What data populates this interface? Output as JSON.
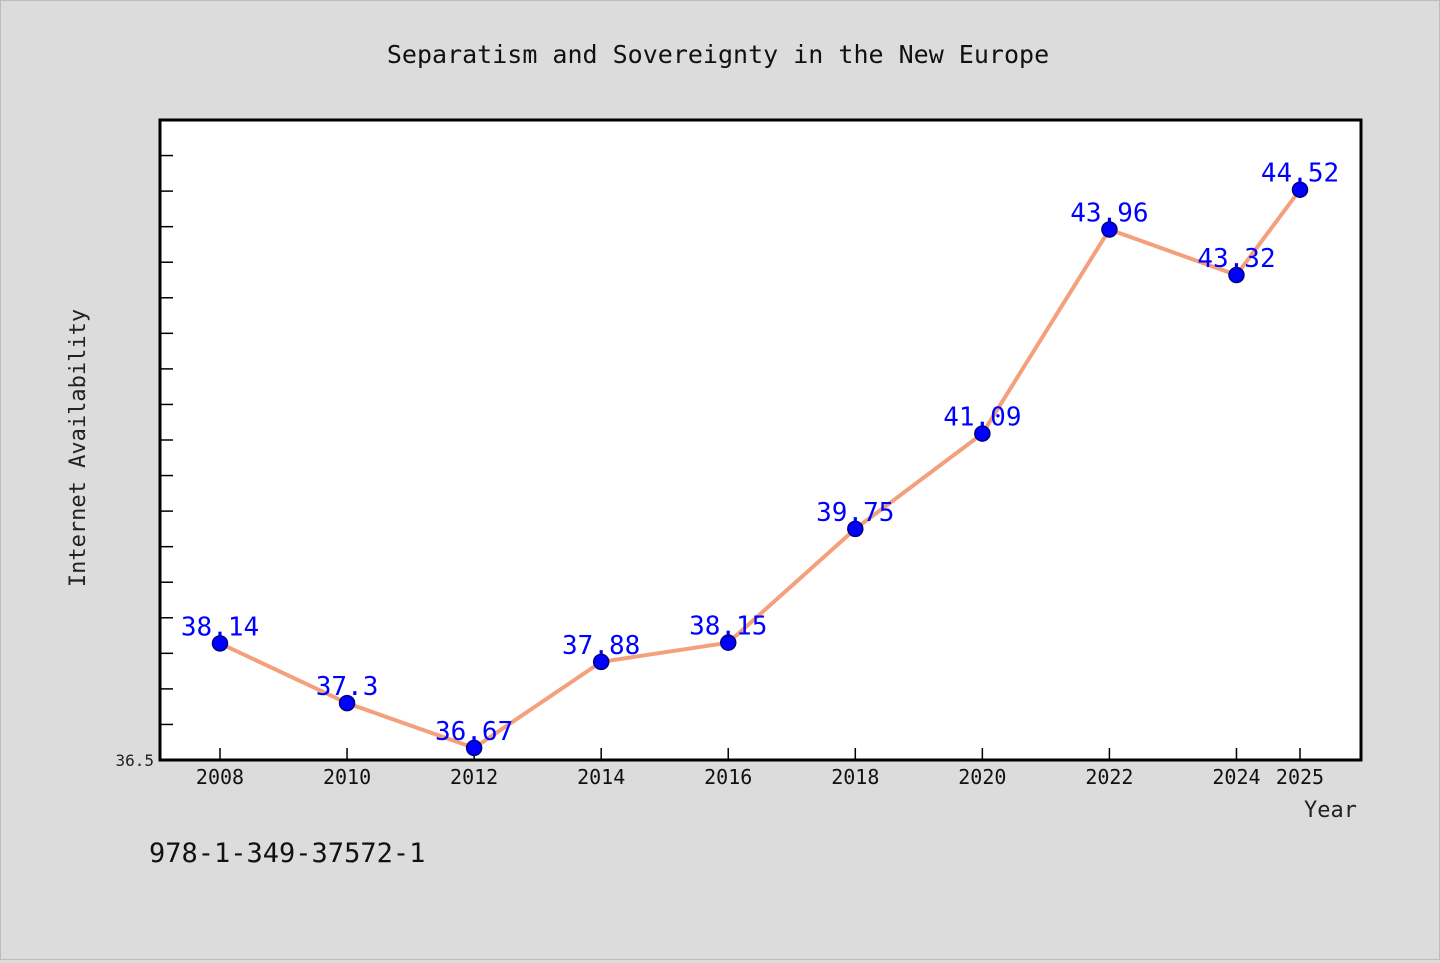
{
  "chart_data": {
    "type": "line",
    "title": "Separatism and Sovereignty in the New Europe",
    "xlabel": "Year",
    "ylabel": "Internet Availability",
    "x": [
      "2008",
      "2010",
      "2012",
      "2014",
      "2016",
      "2018",
      "2020",
      "2022",
      "2024",
      "2025"
    ],
    "series": [
      {
        "values": [
          38.14,
          37.3,
          36.67,
          37.88,
          38.15,
          39.75,
          41.09,
          43.96,
          43.32,
          44.52
        ],
        "data_labels": [
          "38.14",
          "37.3",
          "36.67",
          "37.88",
          "38.15",
          "39.75",
          "41.09",
          "43.96",
          "43.32",
          "44.52"
        ]
      }
    ],
    "y_tick_labels": [
      "36.5"
    ],
    "ylim": [
      36.5,
      45.5
    ],
    "grid": false,
    "legend": "none",
    "colors": {
      "line": "#f4a07c",
      "marker": "#0000ff",
      "marker_edge": "#000080",
      "label": "#0000ff",
      "background": "#dcdcdc",
      "plot_background": "#ffffff"
    }
  },
  "footer": {
    "isbn": "978-1-349-37572-1"
  }
}
